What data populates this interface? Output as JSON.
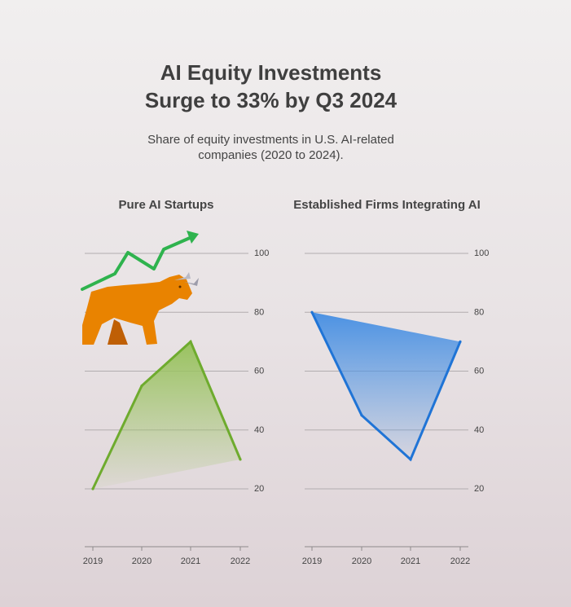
{
  "title_line1": "AI Equity Investments",
  "title_line2": "Surge to 33% by Q3 2024",
  "subtitle_line1": "Share of equity investments in U.S. AI-related",
  "subtitle_line2": "companies (2020 to 2024).",
  "chart_data": [
    {
      "type": "area",
      "title": "Pure AI Startups",
      "x": [
        "2019",
        "2020",
        "2021",
        "2022"
      ],
      "values": [
        20,
        55,
        70,
        30
      ],
      "y_ticks": [
        20,
        40,
        60,
        80,
        100
      ],
      "ylim": [
        0,
        100
      ],
      "grid": true,
      "color": "#6eab2e",
      "fill_top": "#99c25f",
      "decoration_icons": [
        "bull-icon",
        "trend-up-arrow-icon"
      ]
    },
    {
      "type": "area",
      "title": "Established Firms Integrating AI",
      "x": [
        "2019",
        "2020",
        "2021",
        "2022"
      ],
      "values": [
        80,
        45,
        30,
        70
      ],
      "y_ticks": [
        20,
        40,
        60,
        80,
        100
      ],
      "ylim": [
        0,
        100
      ],
      "grid": true,
      "color": "#1f74d6",
      "fill_top": "#4c92e3"
    }
  ]
}
